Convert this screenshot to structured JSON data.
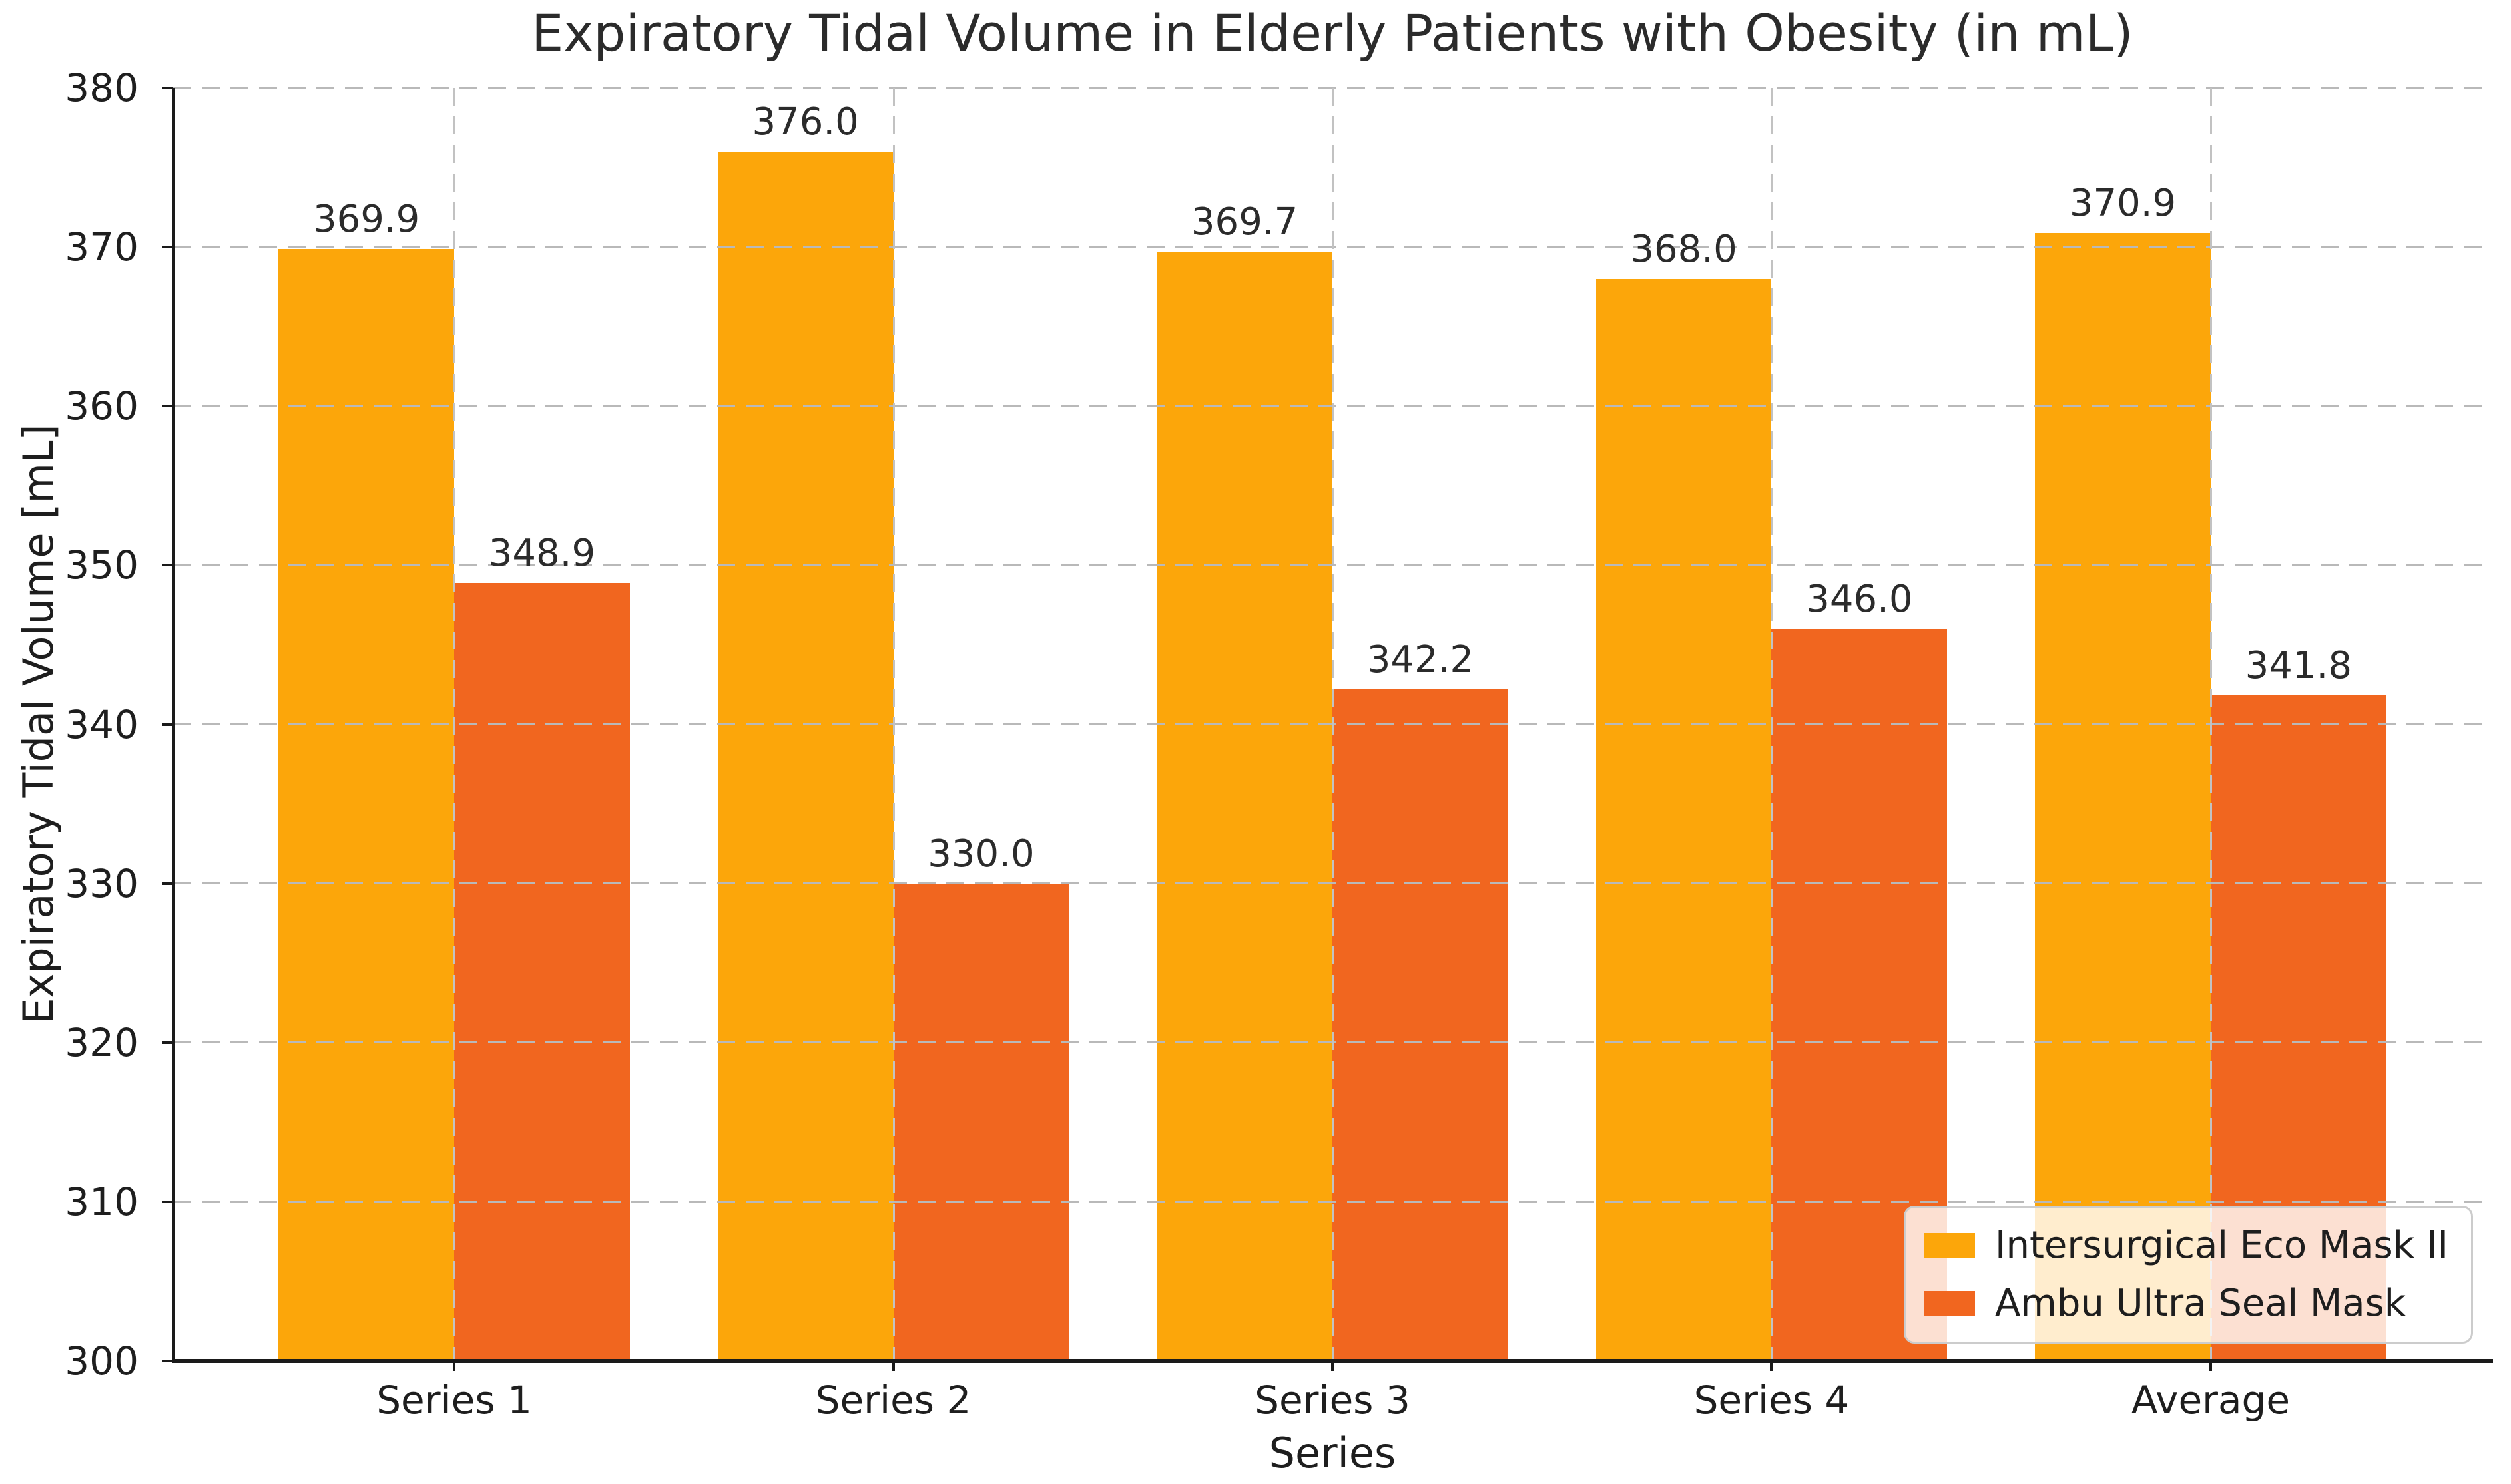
{
  "chart_data": {
    "type": "bar",
    "title": "Expiratory Tidal Volume in Elderly Patients with Obesity (in mL)",
    "xlabel": "Series",
    "ylabel": "Expiratory Tidal Volume [mL]",
    "categories": [
      "Series 1",
      "Series 2",
      "Series 3",
      "Series 4",
      "Average"
    ],
    "series": [
      {
        "name": "Intersurgical Eco Mask II",
        "color": "#FCA60A",
        "values": [
          369.9,
          376.0,
          369.7,
          368.0,
          370.9
        ]
      },
      {
        "name": "Ambu Ultra Seal Mask",
        "color": "#F1661F",
        "values": [
          348.9,
          330.0,
          342.2,
          346.0,
          341.8
        ]
      }
    ],
    "ylim": [
      300,
      380
    ],
    "yticks": [
      300,
      310,
      320,
      330,
      340,
      350,
      360,
      370,
      380
    ],
    "grid": "dashed-gray-above-bars",
    "legend_position": "lower right",
    "value_label_format": "1-decimal"
  },
  "colors": {
    "grid": "#b9b9b9",
    "spine": "#1a1a1a",
    "text": "#262626",
    "legend_border": "#cccccc",
    "legend_background": "rgba(255,255,255,0.8)"
  }
}
